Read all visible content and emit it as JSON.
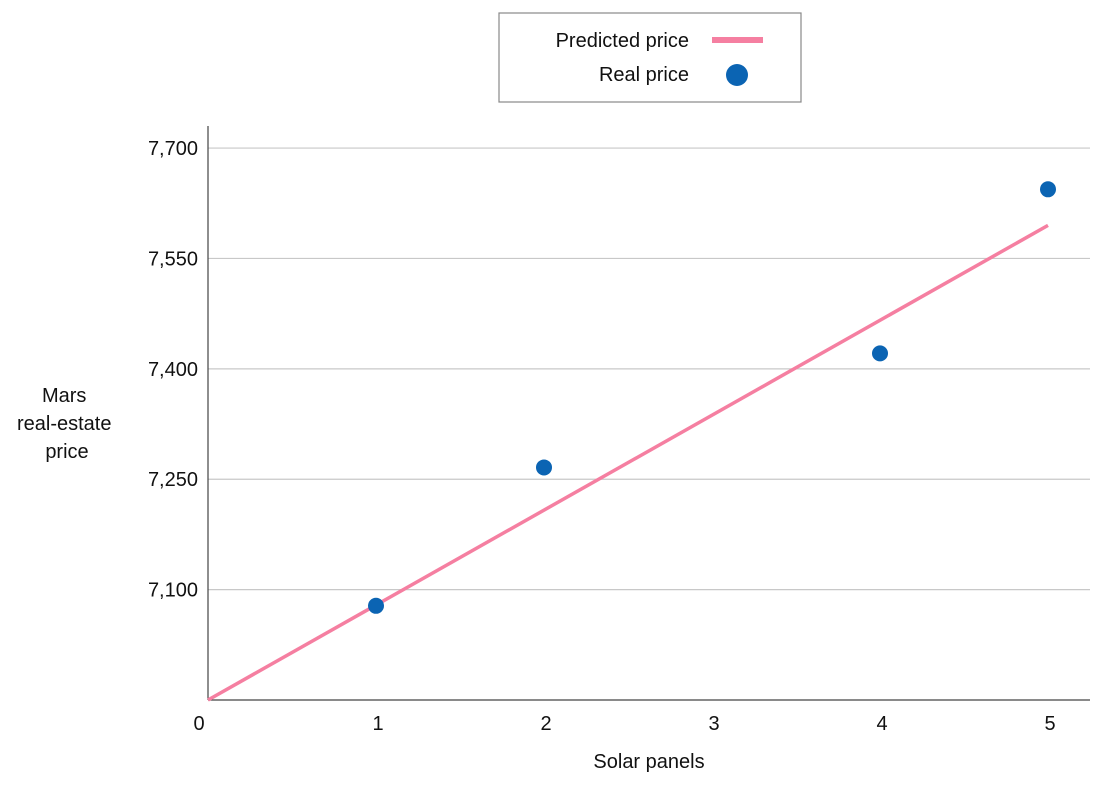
{
  "chart_data": {
    "type": "scatter",
    "xlabel": "Solar panels",
    "ylabel_lines": [
      "Mars",
      "real-estate",
      "price"
    ],
    "xlim": [
      0,
      5.25
    ],
    "ylim": [
      6950,
      7730
    ],
    "xticks": [
      {
        "value": 0,
        "label": "0"
      },
      {
        "value": 1,
        "label": "1"
      },
      {
        "value": 2,
        "label": "2"
      },
      {
        "value": 3,
        "label": "3"
      },
      {
        "value": 4,
        "label": "4"
      },
      {
        "value": 5,
        "label": "5"
      }
    ],
    "yticks": [
      {
        "value": 7100,
        "label": "7,100"
      },
      {
        "value": 7250,
        "label": "7,250"
      },
      {
        "value": 7400,
        "label": "7,400"
      },
      {
        "value": 7550,
        "label": "7,550"
      },
      {
        "value": 7700,
        "label": "7,700"
      }
    ],
    "grid": true,
    "legend_position": "top-center",
    "series": [
      {
        "name": "Predicted price",
        "kind": "line",
        "color": "#f57fa1",
        "points": [
          {
            "x": 0,
            "y": 6950
          },
          {
            "x": 5,
            "y": 7595
          }
        ]
      },
      {
        "name": "Real price",
        "kind": "scatter",
        "color": "#0b64b3",
        "points": [
          {
            "x": 1,
            "y": 7078
          },
          {
            "x": 2,
            "y": 7266
          },
          {
            "x": 4,
            "y": 7421
          },
          {
            "x": 5,
            "y": 7644
          }
        ]
      }
    ]
  }
}
